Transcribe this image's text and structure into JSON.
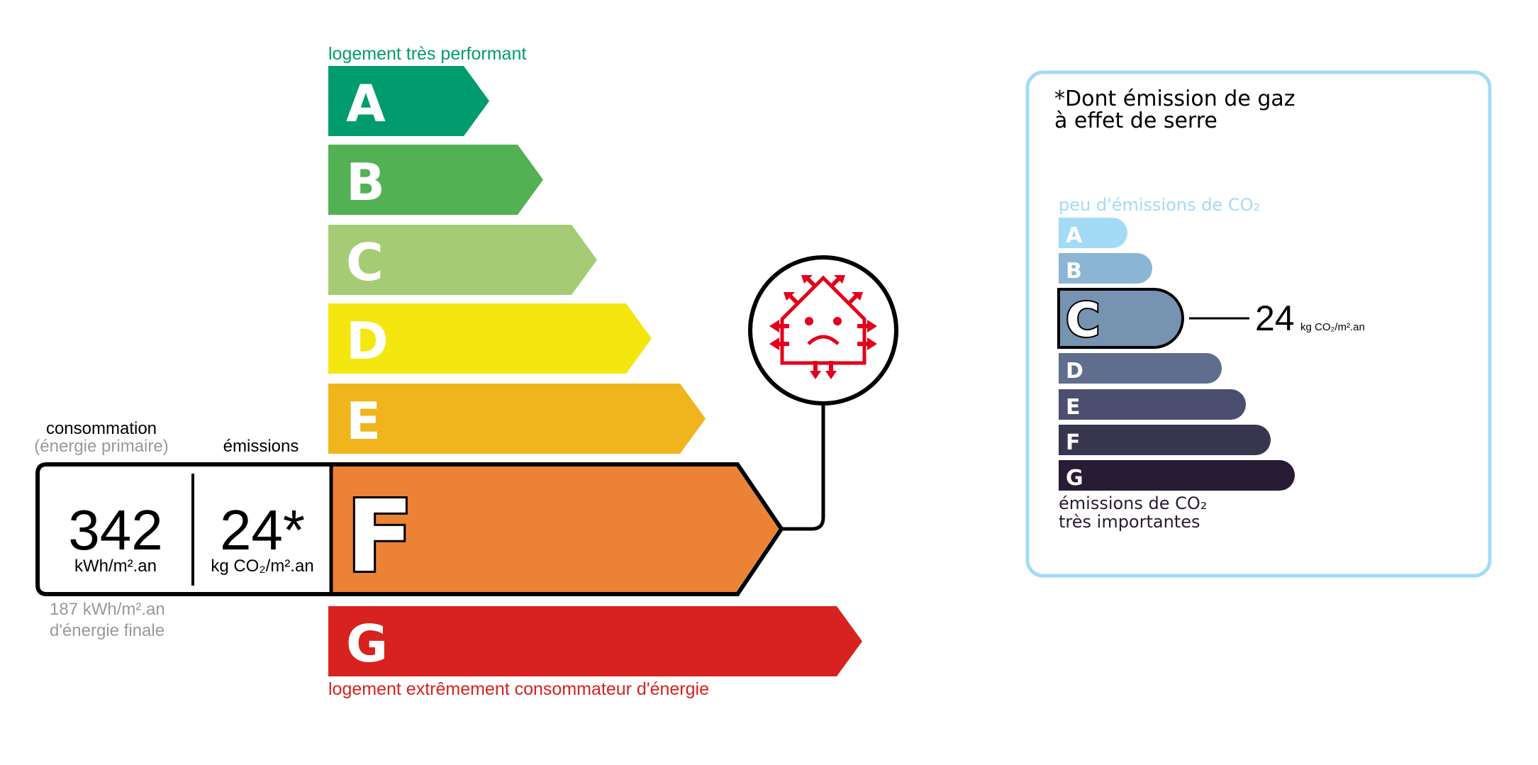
{
  "energy_label": {
    "top_caption": "logement très performant",
    "bottom_caption": "logement extrêmement consommateur d'énergie",
    "classes": [
      {
        "letter": "A",
        "color": "#009c6d"
      },
      {
        "letter": "B",
        "color": "#52b153"
      },
      {
        "letter": "C",
        "color": "#a5cc74"
      },
      {
        "letter": "D",
        "color": "#f4e70f"
      },
      {
        "letter": "E",
        "color": "#f0b41c"
      },
      {
        "letter": "F",
        "color": "#eb8235"
      },
      {
        "letter": "G",
        "color": "#d7221f"
      }
    ],
    "current_class": "F",
    "consumption_header": "consommation",
    "consumption_subheader": "(énergie primaire)",
    "emissions_header": "émissions",
    "consumption_value": "342",
    "consumption_unit": "kWh/m².an",
    "emissions_value": "24*",
    "emissions_unit": "kg CO₂/m².an",
    "final_energy_line1": "187 kWh/m².an",
    "final_energy_line2": "d'énergie finale",
    "icon": "passoire-thermique-sad-house-icon",
    "icon_color": "#e2001a"
  },
  "ges_label": {
    "title_line1": "*Dont émission de gaz",
    "title_line2": "à effet de serre",
    "top_caption": "peu d'émissions de CO₂",
    "bottom_caption_line1": "émissions de CO₂",
    "bottom_caption_line2": "très importantes",
    "classes": [
      {
        "letter": "A",
        "color": "#a3dbf7"
      },
      {
        "letter": "B",
        "color": "#8ab5d5"
      },
      {
        "letter": "C",
        "color": "#7693b1"
      },
      {
        "letter": "D",
        "color": "#5f6e8f"
      },
      {
        "letter": "E",
        "color": "#4b4e6e"
      },
      {
        "letter": "F",
        "color": "#38354f"
      },
      {
        "letter": "G",
        "color": "#281b35"
      }
    ],
    "current_class": "C",
    "value": "24",
    "unit": "kg CO₂/m².an",
    "border_color": "#a3dbf7"
  }
}
